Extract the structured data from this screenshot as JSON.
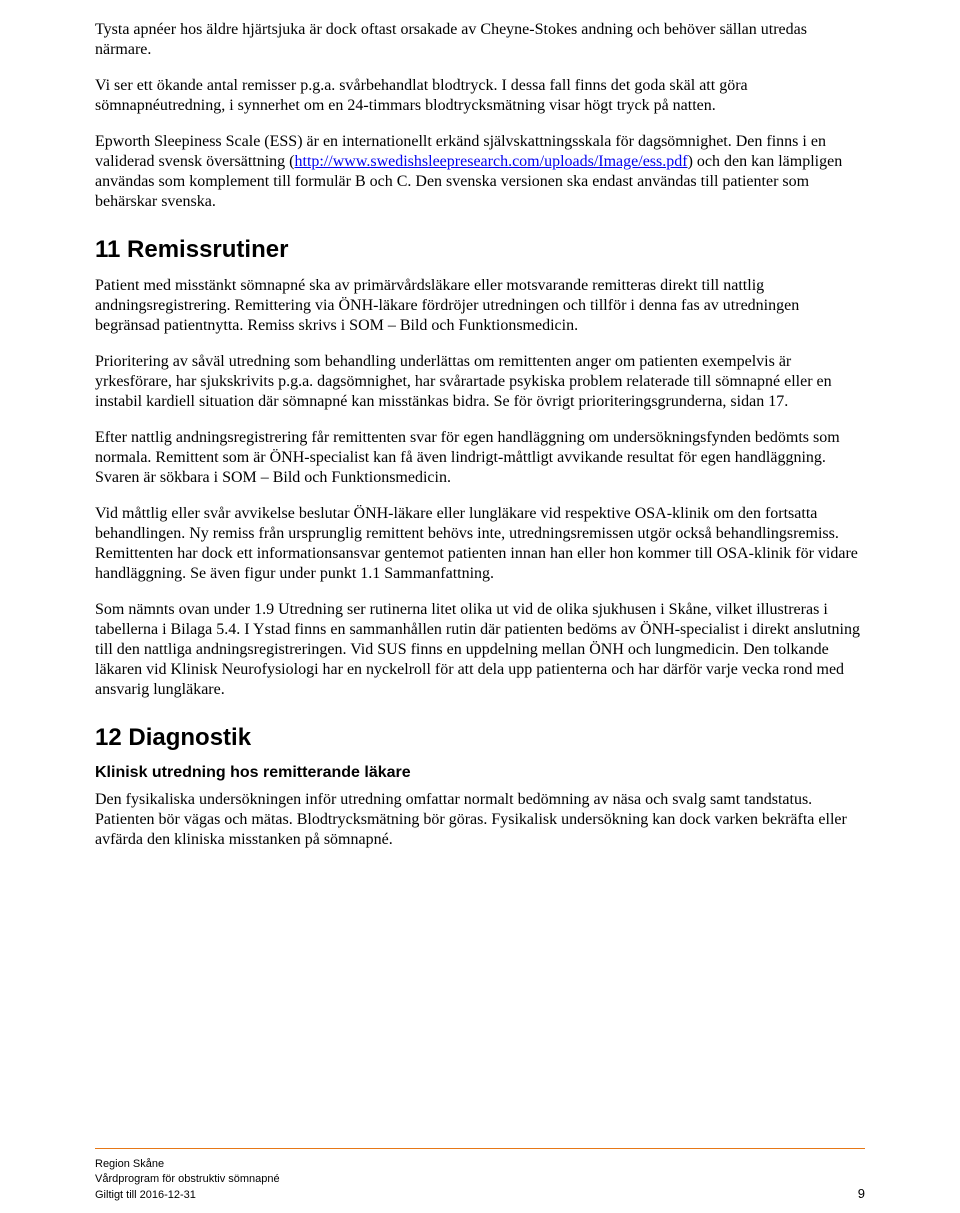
{
  "p1": "Tysta apnéer hos äldre hjärtsjuka är dock oftast orsakade av Cheyne-Stokes andning och behöver sällan utredas närmare.",
  "p2": "Vi ser ett ökande antal remisser p.g.a. svårbehandlat blodtryck.",
  "p3": "I dessa fall finns det goda skäl att göra sömnapnéutredning, i synnerhet om en 24-timmars blodtrycksmätning visar högt tryck på natten.",
  "p4_a": "Epworth Sleepiness Scale (ESS) är en internationellt erkänd självskattningsskala för dagsömnighet. Den finns i en validerad svensk översättning (",
  "p4_link": "http://www.swedishsleepresearch.com/uploads/Image/ess.pdf",
  "p4_b": ") och den kan lämpligen användas som komplement till formulär B och C. Den svenska versionen ska endast användas till patienter som behärskar svenska.",
  "h11": "11 Remissrutiner",
  "p5": "Patient med misstänkt sömnapné ska av primärvårdsläkare eller motsvarande remitteras direkt till nattlig andningsregistrering. Remittering via ÖNH-läkare fördröjer utredningen och tillför i denna fas av utredningen begränsad patientnytta. Remiss skrivs i SOM – Bild och Funktionsmedicin.",
  "p6": "Prioritering av såväl utredning som behandling underlättas om remittenten anger om patienten exempelvis är yrkesförare, har sjukskrivits p.g.a. dagsömnighet, har svårartade psykiska problem relaterade till sömnapné eller en instabil kardiell situation där sömnapné kan misstänkas bidra. Se för övrigt prioriteringsgrunderna, sidan 17.",
  "p7": "Efter nattlig andningsregistrering får remittenten svar för egen handläggning om undersökningsfynden bedömts som normala. Remittent som är ÖNH-specialist kan få även lindrigt-måttligt avvikande resultat för egen handläggning. Svaren är sökbara i SOM – Bild och Funktionsmedicin.",
  "p8": "Vid måttlig eller svår avvikelse beslutar ÖNH-läkare eller lungläkare vid respektive OSA-klinik om den fortsatta behandlingen. Ny remiss från ursprunglig remittent behövs inte, utredningsremissen utgör också behandlingsremiss. Remittenten har dock ett informationsansvar gentemot patienten innan han eller hon kommer till OSA-klinik för vidare handläggning. Se även figur under punkt 1.1 Sammanfattning.",
  "p9": "Som nämnts ovan under 1.9 Utredning ser rutinerna litet olika ut vid de olika sjukhusen i Skåne, vilket illustreras i tabellerna i Bilaga 5.4. I Ystad finns en sammanhållen rutin där patienten bedöms av ÖNH-specialist i direkt anslutning till den nattliga andningsregistreringen. Vid SUS finns en uppdelning mellan ÖNH och lungmedicin. Den tolkande läkaren vid Klinisk Neurofysiologi har en nyckelroll för att dela upp patienterna och har därför varje vecka rond med ansvarig lungläkare.",
  "h12": "12 Diagnostik",
  "h12_sub": "Klinisk utredning hos remitterande läkare",
  "p10": "Den fysikaliska undersökningen inför utredning omfattar normalt bedömning av näsa och svalg samt tandstatus. Patienten bör vägas och mätas. Blodtrycksmätning bör göras. Fysikalisk undersökning kan dock varken bekräfta eller avfärda den kliniska misstanken på sömnapné.",
  "footer": {
    "org": "Region Skåne",
    "doc": "Vårdprogram för obstruktiv sömnapné",
    "valid": "Giltigt till 2016-12-31",
    "page": "9"
  },
  "colors": {
    "link": "#0000ee",
    "divider": "#e67817",
    "text": "#000000",
    "background": "#ffffff"
  }
}
